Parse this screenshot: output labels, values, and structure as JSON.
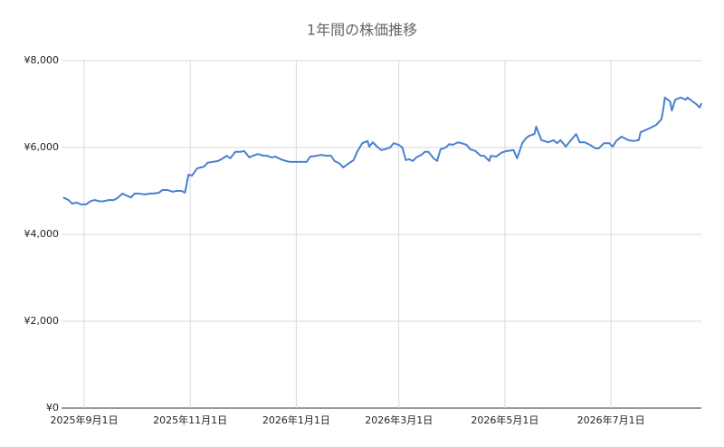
{
  "chart_data": {
    "type": "line",
    "title": "1年間の株価推移",
    "x": [
      "2025-08-20",
      "2025-08-23",
      "2025-08-25",
      "2025-08-28",
      "2025-08-30",
      "2025-09-02",
      "2025-09-05",
      "2025-09-07",
      "2025-09-10",
      "2025-09-12",
      "2025-09-15",
      "2025-09-18",
      "2025-09-20",
      "2025-09-23",
      "2025-09-25",
      "2025-09-28",
      "2025-09-30",
      "2025-10-02",
      "2025-10-06",
      "2025-10-09",
      "2025-10-11",
      "2025-10-14",
      "2025-10-16",
      "2025-10-19",
      "2025-10-22",
      "2025-10-24",
      "2025-10-27",
      "2025-10-29",
      "2025-10-31",
      "2025-11-02",
      "2025-11-05",
      "2025-11-09",
      "2025-11-11",
      "2025-11-17",
      "2025-11-19",
      "2025-11-22",
      "2025-11-24",
      "2025-11-27",
      "2025-11-30",
      "2025-12-02",
      "2025-12-05",
      "2025-12-07",
      "2025-12-10",
      "2025-12-13",
      "2025-12-15",
      "2025-12-18",
      "2025-12-20",
      "2025-12-23",
      "2025-12-26",
      "2025-12-28",
      "2026-01-02",
      "2026-01-07",
      "2026-01-09",
      "2026-01-13",
      "2026-01-15",
      "2026-01-18",
      "2026-01-21",
      "2026-01-23",
      "2026-01-26",
      "2026-01-28",
      "2026-01-31",
      "2026-02-03",
      "2026-02-05",
      "2026-02-08",
      "2026-02-11",
      "2026-02-12",
      "2026-02-14",
      "2026-02-17",
      "2026-02-19",
      "2026-02-21",
      "2026-02-24",
      "2026-02-26",
      "2026-03-01",
      "2026-03-03",
      "2026-03-05",
      "2026-03-07",
      "2026-03-09",
      "2026-03-11",
      "2026-03-14",
      "2026-03-16",
      "2026-03-18",
      "2026-03-21",
      "2026-03-23",
      "2026-03-25",
      "2026-03-28",
      "2026-03-30",
      "2026-04-01",
      "2026-04-04",
      "2026-04-06",
      "2026-04-09",
      "2026-04-11",
      "2026-04-14",
      "2026-04-17",
      "2026-04-19",
      "2026-04-22",
      "2026-04-23",
      "2026-04-26",
      "2026-04-29",
      "2026-05-02",
      "2026-05-06",
      "2026-05-08",
      "2026-05-11",
      "2026-05-13",
      "2026-05-15",
      "2026-05-18",
      "2026-05-19",
      "2026-05-22",
      "2026-05-26",
      "2026-05-29",
      "2026-05-31",
      "2026-06-02",
      "2026-06-05",
      "2026-06-08",
      "2026-06-11",
      "2026-06-13",
      "2026-06-16",
      "2026-06-19",
      "2026-06-22",
      "2026-06-24",
      "2026-06-27",
      "2026-06-30",
      "2026-07-02",
      "2026-07-04",
      "2026-07-07",
      "2026-07-11",
      "2026-07-14",
      "2026-07-17",
      "2026-07-18",
      "2026-07-22",
      "2026-07-25",
      "2026-07-27",
      "2026-07-30",
      "2026-07-31",
      "2026-08-01",
      "2026-08-04",
      "2026-08-05",
      "2026-08-07",
      "2026-08-10",
      "2026-08-13",
      "2026-08-14",
      "2026-08-17",
      "2026-08-19",
      "2026-08-21",
      "2026-08-22"
    ],
    "values": [
      4850,
      4790,
      4710,
      4730,
      4690,
      4690,
      4770,
      4790,
      4760,
      4760,
      4790,
      4790,
      4830,
      4940,
      4900,
      4850,
      4940,
      4940,
      4920,
      4940,
      4940,
      4960,
      5020,
      5020,
      4980,
      5000,
      5000,
      4960,
      5375,
      5350,
      5520,
      5560,
      5650,
      5690,
      5730,
      5810,
      5750,
      5900,
      5900,
      5920,
      5770,
      5810,
      5850,
      5810,
      5810,
      5770,
      5790,
      5730,
      5690,
      5670,
      5670,
      5670,
      5790,
      5810,
      5830,
      5810,
      5810,
      5690,
      5630,
      5540,
      5630,
      5710,
      5900,
      6100,
      6150,
      6020,
      6120,
      6000,
      5940,
      5960,
      6000,
      6100,
      6060,
      6000,
      5710,
      5730,
      5690,
      5770,
      5830,
      5900,
      5900,
      5750,
      5690,
      5960,
      6000,
      6080,
      6060,
      6120,
      6100,
      6060,
      5960,
      5920,
      5810,
      5810,
      5690,
      5810,
      5790,
      5880,
      5920,
      5940,
      5750,
      6100,
      6210,
      6270,
      6310,
      6480,
      6170,
      6120,
      6170,
      6100,
      6170,
      6020,
      6170,
      6310,
      6120,
      6120,
      6060,
      5980,
      5980,
      6100,
      6100,
      6020,
      6150,
      6250,
      6170,
      6150,
      6170,
      6350,
      6420,
      6480,
      6520,
      6650,
      6850,
      7150,
      7060,
      6850,
      7100,
      7150,
      7100,
      7150,
      7060,
      7000,
      6920,
      7020
    ],
    "color": "#4a80d0",
    "xlim": [
      "2025-08-19",
      "2026-08-22"
    ],
    "xticks": [
      {
        "value": "2025-09-01",
        "label": "2025年9月1日"
      },
      {
        "value": "2025-11-01",
        "label": "2025年11月1日"
      },
      {
        "value": "2026-01-01",
        "label": "2026年1月1日"
      },
      {
        "value": "2026-03-01",
        "label": "2026年3月1日"
      },
      {
        "value": "2026-05-01",
        "label": "2026年5月1日"
      },
      {
        "value": "2026-07-01",
        "label": "2026年7月1日"
      }
    ],
    "ylim": [
      0,
      8000
    ],
    "yticks": [
      {
        "value": 0,
        "label": "¥0"
      },
      {
        "value": 2000,
        "label": "¥2,000"
      },
      {
        "value": 4000,
        "label": "¥4,000"
      },
      {
        "value": 6000,
        "label": "¥6,000"
      },
      {
        "value": 8000,
        "label": "¥8,000"
      }
    ],
    "grid": true
  }
}
